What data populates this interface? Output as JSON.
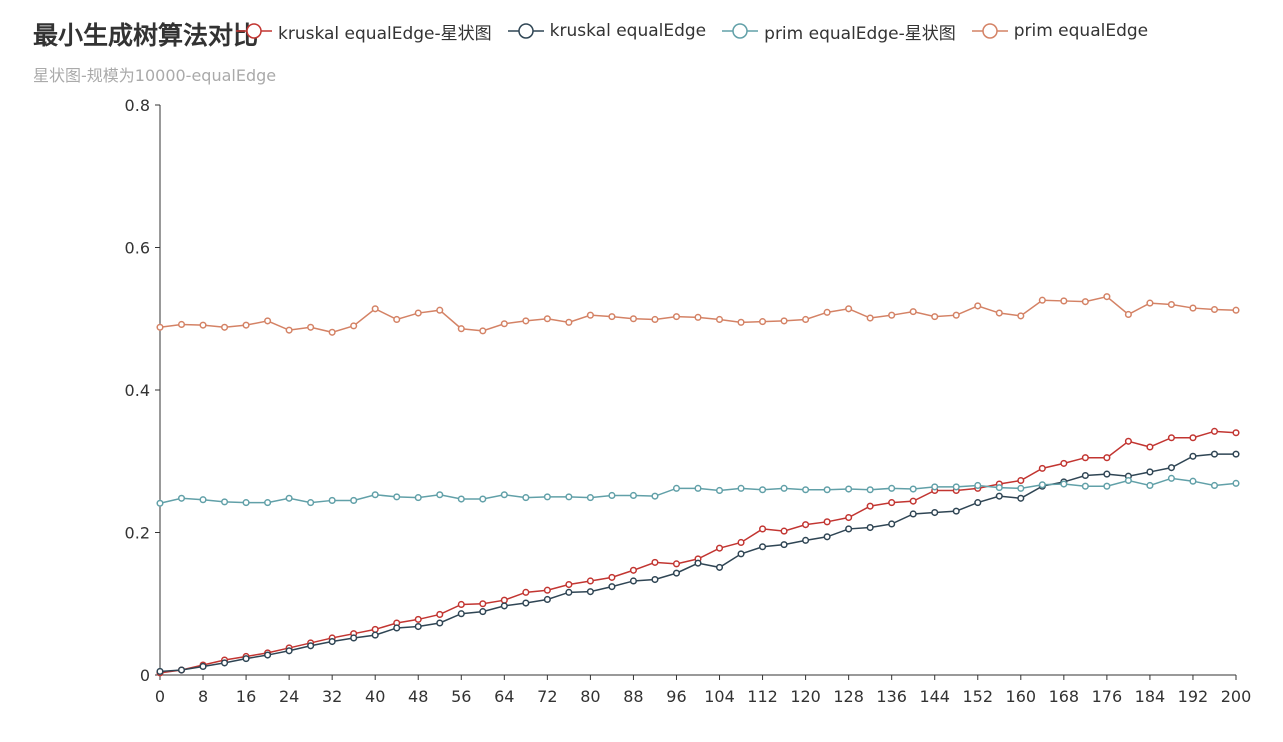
{
  "title": "最小生成树算法对比",
  "subtitle": "星状图-规模为10000-equalEdge",
  "colors": {
    "kruskal_star": "#c23531",
    "kruskal": "#2f4554",
    "prim_star": "#61a0a8",
    "prim": "#d48265"
  },
  "chart_data": {
    "type": "line",
    "title": "最小生成树算法对比",
    "subtitle": "星状图-规模为10000-equalEdge",
    "xlim": [
      0,
      200
    ],
    "ylim": [
      0,
      0.8
    ],
    "x_ticks": [
      "0",
      "8",
      "16",
      "24",
      "32",
      "40",
      "48",
      "56",
      "64",
      "72",
      "80",
      "88",
      "96",
      "104",
      "112",
      "120",
      "128",
      "136",
      "144",
      "152",
      "160",
      "168",
      "176",
      "184",
      "192",
      "200"
    ],
    "y_ticks": [
      "0",
      "0.2",
      "0.4",
      "0.6",
      "0.8"
    ],
    "legend_position": "top",
    "x": [
      0,
      4,
      8,
      12,
      16,
      20,
      24,
      28,
      32,
      36,
      40,
      44,
      48,
      52,
      56,
      60,
      64,
      68,
      72,
      76,
      80,
      84,
      88,
      92,
      96,
      100,
      104,
      108,
      112,
      116,
      120,
      124,
      128,
      132,
      136,
      140,
      144,
      148,
      152,
      156,
      160,
      164,
      168,
      172,
      176,
      180,
      184,
      188,
      192,
      196,
      200
    ],
    "series": [
      {
        "name": "kruskal equalEdge-星状图",
        "color": "#c23531",
        "values": [
          0.003,
          0.007,
          0.014,
          0.021,
          0.026,
          0.031,
          0.038,
          0.045,
          0.052,
          0.058,
          0.064,
          0.073,
          0.078,
          0.085,
          0.099,
          0.1,
          0.105,
          0.116,
          0.119,
          0.127,
          0.132,
          0.137,
          0.147,
          0.158,
          0.156,
          0.163,
          0.178,
          0.186,
          0.205,
          0.202,
          0.211,
          0.215,
          0.221,
          0.237,
          0.242,
          0.244,
          0.259,
          0.259,
          0.262,
          0.268,
          0.273,
          0.29,
          0.297,
          0.305,
          0.305,
          0.328,
          0.32,
          0.333,
          0.333,
          0.342,
          0.34
        ]
      },
      {
        "name": "kruskal equalEdge",
        "color": "#2f4554",
        "values": [
          0.005,
          0.007,
          0.012,
          0.017,
          0.023,
          0.028,
          0.034,
          0.041,
          0.047,
          0.052,
          0.056,
          0.066,
          0.068,
          0.073,
          0.086,
          0.089,
          0.097,
          0.101,
          0.106,
          0.116,
          0.117,
          0.124,
          0.132,
          0.134,
          0.143,
          0.157,
          0.151,
          0.17,
          0.18,
          0.183,
          0.189,
          0.194,
          0.205,
          0.207,
          0.212,
          0.226,
          0.228,
          0.23,
          0.242,
          0.251,
          0.248,
          0.265,
          0.271,
          0.28,
          0.282,
          0.279,
          0.285,
          0.291,
          0.307,
          0.31,
          0.31
        ]
      },
      {
        "name": "prim equalEdge-星状图",
        "color": "#61a0a8",
        "values": [
          0.241,
          0.248,
          0.246,
          0.243,
          0.242,
          0.242,
          0.248,
          0.242,
          0.245,
          0.245,
          0.253,
          0.25,
          0.249,
          0.253,
          0.247,
          0.247,
          0.253,
          0.249,
          0.25,
          0.25,
          0.249,
          0.252,
          0.252,
          0.251,
          0.262,
          0.262,
          0.259,
          0.262,
          0.26,
          0.262,
          0.26,
          0.26,
          0.261,
          0.26,
          0.262,
          0.261,
          0.264,
          0.264,
          0.266,
          0.263,
          0.262,
          0.267,
          0.268,
          0.265,
          0.265,
          0.273,
          0.266,
          0.276,
          0.272,
          0.266,
          0.269
        ]
      },
      {
        "name": "prim equalEdge",
        "color": "#d48265",
        "values": [
          0.488,
          0.492,
          0.491,
          0.488,
          0.491,
          0.497,
          0.484,
          0.488,
          0.481,
          0.49,
          0.514,
          0.499,
          0.508,
          0.512,
          0.486,
          0.483,
          0.493,
          0.497,
          0.5,
          0.495,
          0.505,
          0.503,
          0.5,
          0.499,
          0.503,
          0.502,
          0.499,
          0.495,
          0.496,
          0.497,
          0.499,
          0.509,
          0.514,
          0.501,
          0.505,
          0.51,
          0.503,
          0.505,
          0.518,
          0.508,
          0.504,
          0.526,
          0.525,
          0.524,
          0.531,
          0.506,
          0.522,
          0.52,
          0.515,
          0.513,
          0.512
        ]
      }
    ]
  }
}
